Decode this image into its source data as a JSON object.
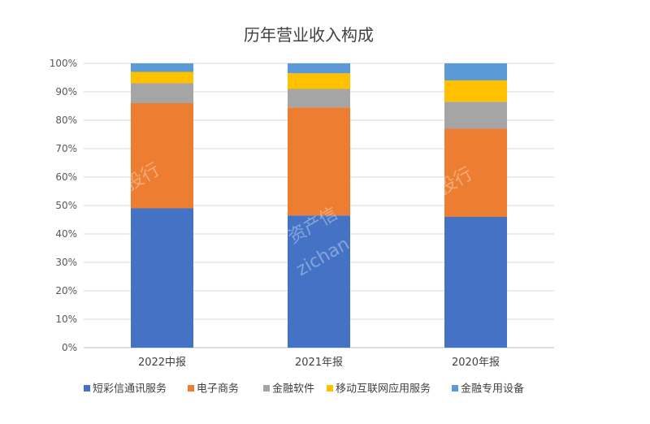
{
  "chart_data": {
    "type": "bar",
    "stacked": true,
    "title": "历年营业收入构成",
    "xlabel": "",
    "ylabel": "",
    "ylim": [
      0,
      100
    ],
    "y_ticks": [
      "0%",
      "10%",
      "20%",
      "30%",
      "40%",
      "50%",
      "60%",
      "70%",
      "80%",
      "90%",
      "100%"
    ],
    "grid": true,
    "legend_position": "bottom",
    "categories": [
      "2022中报",
      "2021年报",
      "2020年报"
    ],
    "series": [
      {
        "name": "短彩信通讯服务",
        "color": "#4472C4",
        "values": [
          49,
          46.5,
          46
        ]
      },
      {
        "name": "电子商务",
        "color": "#ED7D31",
        "values": [
          37,
          38,
          31
        ]
      },
      {
        "name": "金融软件",
        "color": "#A5A5A5",
        "values": [
          7,
          6.5,
          9.5
        ]
      },
      {
        "name": "移动互联网应用服务",
        "color": "#FFC000",
        "values": [
          4,
          5.5,
          7.5
        ]
      },
      {
        "name": "金融专用设备",
        "color": "#5B9BD5",
        "values": [
          3,
          3.5,
          6
        ]
      }
    ]
  },
  "watermark": {
    "text_1": "资产信",
    "text_2": "zichan",
    "text_3": "投行"
  }
}
